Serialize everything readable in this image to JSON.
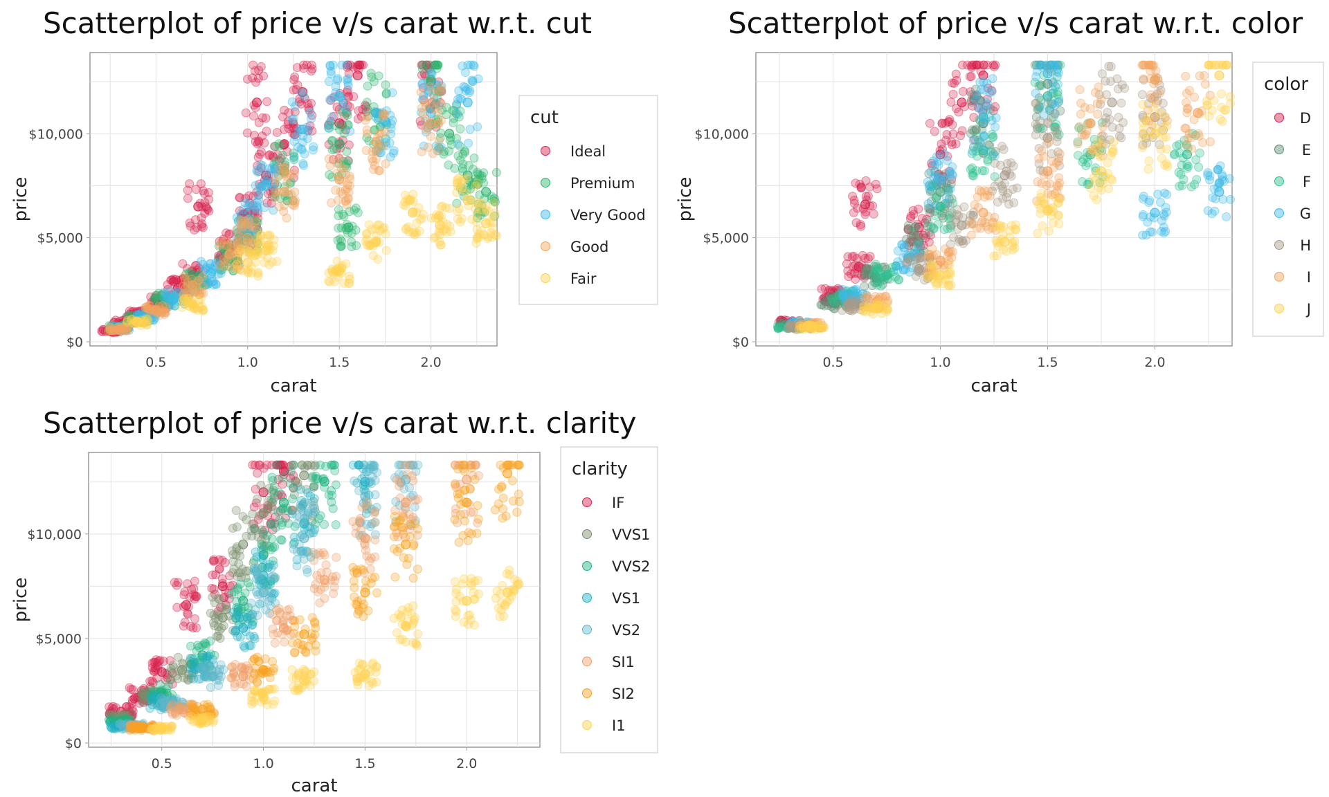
{
  "chart_data": [
    {
      "type": "scatter",
      "title": "Scatterplot of price v/s carat w.r.t. cut",
      "xlabel": "carat",
      "ylabel": "price",
      "xlim": [
        0.14,
        2.36
      ],
      "ylim": [
        -200,
        13900
      ],
      "xticks": [
        {
          "v": 0.5,
          "label": "0.5"
        },
        {
          "v": 1.0,
          "label": "1.0"
        },
        {
          "v": 1.5,
          "label": "1.5"
        },
        {
          "v": 2.0,
          "label": "2.0"
        }
      ],
      "yticks": [
        {
          "v": 0,
          "label": "$0"
        },
        {
          "v": 5000,
          "label": "$5,000"
        },
        {
          "v": 10000,
          "label": "$10,000"
        }
      ],
      "grid": true,
      "legend_title": "cut",
      "legend_position": "right",
      "series": [
        {
          "name": "Ideal",
          "color": "#d6204c",
          "points": [
            [
              0.25,
              520
            ],
            [
              0.33,
              900
            ],
            [
              0.4,
              1300
            ],
            [
              0.52,
              1900
            ],
            [
              0.62,
              2600
            ],
            [
              0.7,
              3200
            ],
            [
              0.73,
              6500
            ],
            [
              0.9,
              4500
            ],
            [
              1.0,
              6200
            ],
            [
              1.05,
              11500
            ],
            [
              1.1,
              8000
            ],
            [
              1.2,
              9500
            ],
            [
              1.3,
              12000
            ],
            [
              1.5,
              10500
            ],
            [
              1.6,
              12800
            ],
            [
              2.0,
              12500
            ]
          ]
        },
        {
          "name": "Premium",
          "color": "#2bb56d",
          "points": [
            [
              0.3,
              700
            ],
            [
              0.4,
              1100
            ],
            [
              0.55,
              2000
            ],
            [
              0.72,
              2900
            ],
            [
              0.9,
              4000
            ],
            [
              1.0,
              5200
            ],
            [
              1.2,
              8200
            ],
            [
              1.5,
              9500
            ],
            [
              1.55,
              5500
            ],
            [
              1.7,
              11000
            ],
            [
              2.0,
              12600
            ],
            [
              2.1,
              10000
            ],
            [
              2.2,
              8000
            ],
            [
              2.3,
              7200
            ]
          ]
        },
        {
          "name": "Very Good",
          "color": "#3bbbe8",
          "points": [
            [
              0.3,
              650
            ],
            [
              0.45,
              1200
            ],
            [
              0.6,
              2100
            ],
            [
              0.8,
              3300
            ],
            [
              1.0,
              5800
            ],
            [
              1.1,
              7500
            ],
            [
              1.3,
              10200
            ],
            [
              1.5,
              11800
            ],
            [
              1.75,
              10600
            ],
            [
              2.0,
              11000
            ],
            [
              2.2,
              11500
            ]
          ]
        },
        {
          "name": "Good",
          "color": "#f3a35c",
          "points": [
            [
              0.3,
              600
            ],
            [
              0.5,
              1500
            ],
            [
              0.7,
              2700
            ],
            [
              0.9,
              4200
            ],
            [
              1.0,
              5000
            ],
            [
              1.2,
              7200
            ],
            [
              1.5,
              7800
            ],
            [
              1.7,
              9600
            ],
            [
              2.0,
              10500
            ]
          ]
        },
        {
          "name": "Fair",
          "color": "#ffd24f",
          "points": [
            [
              0.4,
              950
            ],
            [
              0.7,
              1800
            ],
            [
              1.0,
              3800
            ],
            [
              1.1,
              4400
            ],
            [
              1.5,
              3400
            ],
            [
              1.7,
              4800
            ],
            [
              1.9,
              6200
            ],
            [
              2.05,
              5600
            ],
            [
              2.2,
              6800
            ],
            [
              2.3,
              5700
            ]
          ]
        }
      ]
    },
    {
      "type": "scatter",
      "title": "Scatterplot of price v/s carat w.r.t. color",
      "xlabel": "carat",
      "ylabel": "price",
      "xlim": [
        0.14,
        2.36
      ],
      "ylim": [
        -200,
        13900
      ],
      "xticks": [
        {
          "v": 0.5,
          "label": "0.5"
        },
        {
          "v": 1.0,
          "label": "1.0"
        },
        {
          "v": 1.5,
          "label": "1.5"
        },
        {
          "v": 2.0,
          "label": "2.0"
        }
      ],
      "yticks": [
        {
          "v": 0,
          "label": "$0"
        },
        {
          "v": 5000,
          "label": "$5,000"
        },
        {
          "v": 10000,
          "label": "$10,000"
        }
      ],
      "grid": true,
      "legend_title": "color",
      "legend_position": "right",
      "series": [
        {
          "name": "D",
          "color": "#d6204c",
          "points": [
            [
              0.3,
              900
            ],
            [
              0.5,
              2200
            ],
            [
              0.62,
              3600
            ],
            [
              0.65,
              6600
            ],
            [
              0.9,
              5500
            ],
            [
              1.0,
              9000
            ],
            [
              1.1,
              11500
            ],
            [
              1.2,
              12800
            ]
          ]
        },
        {
          "name": "E",
          "color": "#5c8f72",
          "points": [
            [
              0.3,
              800
            ],
            [
              0.5,
              1900
            ],
            [
              0.7,
              3100
            ],
            [
              0.9,
              4800
            ],
            [
              1.0,
              7200
            ],
            [
              1.2,
              10500
            ],
            [
              1.5,
              12400
            ]
          ]
        },
        {
          "name": "F",
          "color": "#2bc090",
          "points": [
            [
              0.3,
              750
            ],
            [
              0.55,
              2100
            ],
            [
              0.75,
              3200
            ],
            [
              1.0,
              6500
            ],
            [
              1.2,
              9200
            ],
            [
              1.5,
              11800
            ],
            [
              1.7,
              9000
            ],
            [
              2.15,
              9000
            ]
          ]
        },
        {
          "name": "G",
          "color": "#3bbbe8",
          "points": [
            [
              0.35,
              850
            ],
            [
              0.6,
              2200
            ],
            [
              0.85,
              4000
            ],
            [
              1.0,
              7800
            ],
            [
              1.2,
              10800
            ],
            [
              1.5,
              12900
            ],
            [
              2.0,
              6200
            ],
            [
              2.3,
              7200
            ]
          ]
        },
        {
          "name": "H",
          "color": "#a89a88",
          "points": [
            [
              0.35,
              700
            ],
            [
              0.6,
              1800
            ],
            [
              0.9,
              3500
            ],
            [
              1.1,
              5600
            ],
            [
              1.3,
              8000
            ],
            [
              1.5,
              9800
            ],
            [
              1.8,
              11500
            ],
            [
              2.0,
              10800
            ]
          ]
        },
        {
          "name": "I",
          "color": "#f3a35c",
          "points": [
            [
              0.4,
              800
            ],
            [
              0.7,
              1900
            ],
            [
              1.0,
              3900
            ],
            [
              1.2,
              6200
            ],
            [
              1.5,
              8200
            ],
            [
              1.7,
              10500
            ],
            [
              2.0,
              12600
            ],
            [
              2.2,
              11000
            ]
          ]
        },
        {
          "name": "J",
          "color": "#ffd24f",
          "points": [
            [
              0.4,
              700
            ],
            [
              0.7,
              1600
            ],
            [
              1.0,
              3200
            ],
            [
              1.3,
              4800
            ],
            [
              1.5,
              6300
            ],
            [
              1.75,
              8200
            ],
            [
              2.0,
              10000
            ],
            [
              2.3,
              12800
            ]
          ]
        }
      ]
    },
    {
      "type": "scatter",
      "title": "Scatterplot of price v/s carat w.r.t. clarity",
      "xlabel": "carat",
      "ylabel": "price",
      "xlim": [
        0.14,
        2.36
      ],
      "ylim": [
        -200,
        13900
      ],
      "xticks": [
        {
          "v": 0.5,
          "label": "0.5"
        },
        {
          "v": 1.0,
          "label": "1.0"
        },
        {
          "v": 1.5,
          "label": "1.5"
        },
        {
          "v": 2.0,
          "label": "2.0"
        }
      ],
      "yticks": [
        {
          "v": 0,
          "label": "$0"
        },
        {
          "v": 5000,
          "label": "$5,000"
        },
        {
          "v": 10000,
          "label": "$10,000"
        }
      ],
      "grid": true,
      "legend_title": "clarity",
      "legend_position": "right",
      "series": [
        {
          "name": "IF",
          "color": "#d6204c",
          "points": [
            [
              0.3,
              1500
            ],
            [
              0.4,
              2300
            ],
            [
              0.5,
              3400
            ],
            [
              0.62,
              6600
            ],
            [
              0.8,
              7500
            ],
            [
              1.0,
              12000
            ],
            [
              1.1,
              13000
            ]
          ]
        },
        {
          "name": "VVS1",
          "color": "#7a8f6c",
          "points": [
            [
              0.3,
              1200
            ],
            [
              0.45,
              2200
            ],
            [
              0.6,
              3500
            ],
            [
              0.8,
              6000
            ],
            [
              0.9,
              9500
            ],
            [
              1.0,
              11000
            ],
            [
              1.2,
              12800
            ]
          ]
        },
        {
          "name": "VVS2",
          "color": "#1fb37e",
          "points": [
            [
              0.3,
              1000
            ],
            [
              0.5,
              2400
            ],
            [
              0.7,
              4200
            ],
            [
              0.9,
              6800
            ],
            [
              1.0,
              9000
            ],
            [
              1.1,
              11500
            ],
            [
              1.3,
              12500
            ]
          ]
        },
        {
          "name": "VS1",
          "color": "#1fb0c4",
          "points": [
            [
              0.3,
              800
            ],
            [
              0.5,
              2000
            ],
            [
              0.7,
              3600
            ],
            [
              0.9,
              5500
            ],
            [
              1.0,
              8000
            ],
            [
              1.2,
              10500
            ],
            [
              1.5,
              12500
            ]
          ]
        },
        {
          "name": "VS2",
          "color": "#5fb7c9",
          "points": [
            [
              0.35,
              800
            ],
            [
              0.55,
              1900
            ],
            [
              0.75,
              3200
            ],
            [
              1.0,
              7200
            ],
            [
              1.2,
              9800
            ],
            [
              1.5,
              11800
            ],
            [
              1.7,
              12600
            ]
          ]
        },
        {
          "name": "SI1",
          "color": "#f0a06a",
          "points": [
            [
              0.4,
              800
            ],
            [
              0.6,
              1600
            ],
            [
              0.9,
              3200
            ],
            [
              1.1,
              5500
            ],
            [
              1.3,
              7800
            ],
            [
              1.5,
              9800
            ],
            [
              1.7,
              11500
            ],
            [
              2.0,
              12600
            ]
          ]
        },
        {
          "name": "SI2",
          "color": "#f7a21f",
          "points": [
            [
              0.4,
              700
            ],
            [
              0.7,
              1600
            ],
            [
              1.0,
              3500
            ],
            [
              1.2,
              5200
            ],
            [
              1.5,
              7200
            ],
            [
              1.7,
              9500
            ],
            [
              2.0,
              11500
            ],
            [
              2.2,
              12900
            ]
          ]
        },
        {
          "name": "I1",
          "color": "#ffd24f",
          "points": [
            [
              0.5,
              700
            ],
            [
              0.7,
              1100
            ],
            [
              1.0,
              2200
            ],
            [
              1.2,
              3000
            ],
            [
              1.5,
              3300
            ],
            [
              1.7,
              5600
            ],
            [
              2.0,
              6800
            ],
            [
              2.2,
              7200
            ]
          ]
        }
      ]
    }
  ]
}
